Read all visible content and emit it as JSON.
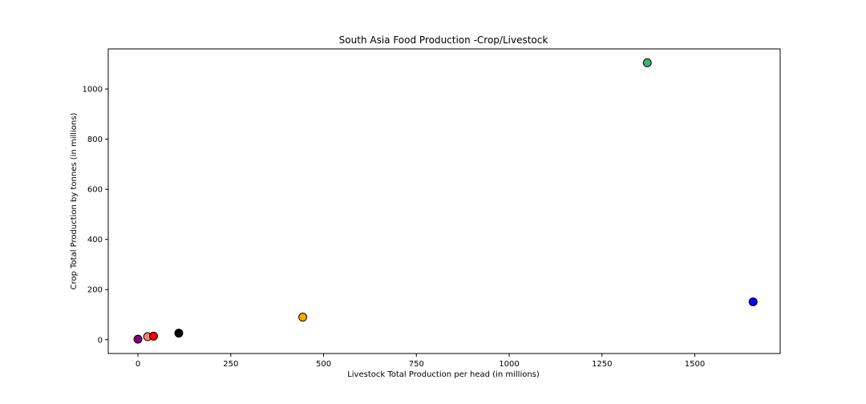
{
  "chart_data": {
    "type": "scatter",
    "title": "South Asia Food Production -Crop/Livestock",
    "xlabel": "Livestock Total Production per head (in millions)",
    "ylabel": "Crop Total Production by tonnes (in millions)",
    "xlim": [
      -80,
      1730
    ],
    "ylim": [
      -55,
      1160
    ],
    "xticks": [
      0,
      250,
      500,
      750,
      1000,
      1250,
      1500
    ],
    "xtick_labels": [
      "0",
      "250",
      "500",
      "750",
      "1000",
      "1250",
      "1500"
    ],
    "yticks": [
      0,
      200,
      400,
      600,
      800,
      1000
    ],
    "ytick_labels": [
      "0",
      "200",
      "400",
      "600",
      "800",
      "1000"
    ],
    "grid": false,
    "points": [
      {
        "x": 0,
        "y": 2,
        "color": "#800080"
      },
      {
        "x": 26,
        "y": 12,
        "color": "#fa8072"
      },
      {
        "x": 42,
        "y": 14,
        "color": "#ff0000"
      },
      {
        "x": 110,
        "y": 26,
        "color": "#000000"
      },
      {
        "x": 444,
        "y": 90,
        "color": "#ffa500"
      },
      {
        "x": 1372,
        "y": 1105,
        "color": "#3cb371"
      },
      {
        "x": 1657,
        "y": 151,
        "color": "#0000ff"
      }
    ]
  }
}
